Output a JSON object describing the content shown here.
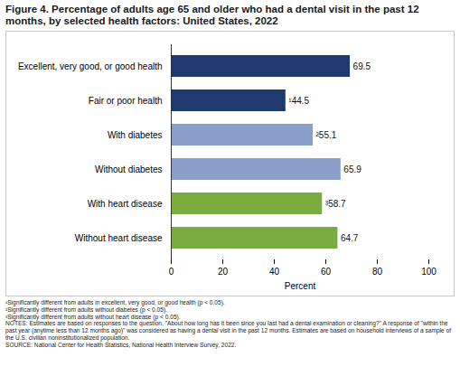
{
  "chart_data": {
    "type": "bar",
    "orientation": "horizontal",
    "title": "Figure 4. Percentage of adults age 65 and older who had a dental visit in the past 12 months, by selected health factors: United States, 2022",
    "categories": [
      "Excellent, very good, or good health",
      "Fair or poor health",
      "With diabetes",
      "Without diabetes",
      "With heart disease",
      "Without heart disease"
    ],
    "values": [
      69.5,
      44.5,
      55.1,
      65.9,
      58.7,
      64.7
    ],
    "value_labels": [
      "69.5",
      "¹44.5",
      "²55.1",
      "65.9",
      "³58.7",
      "64.7"
    ],
    "colors": [
      "#1f3a6e",
      "#1f3a6e",
      "#8b9fcb",
      "#8b9fcb",
      "#7aab3e",
      "#7aab3e"
    ],
    "data_labels": true,
    "x_label": "Percent",
    "xlim": [
      0,
      100
    ],
    "xticks": [
      0,
      20,
      40,
      60,
      80,
      100
    ],
    "grid": false,
    "footnotes": [
      "¹Significantly different from adults in excellent, very good, or good health (p < 0.05).",
      "²Significantly different from adults without diabetes (p < 0.05).",
      "³Significantly different from adults without heart disease (p < 0.05).",
      "NOTES: Estimates are based on responses to the question, \"About how long has it been since you last had a dental examination or cleaning?\" A response of \"within the past year (anytime less than 12 months ago)\" was considered as having a dental visit in the past 12 months. Estimates are based on household interviews of a sample of the U.S. civilian noninstitutionalized population.",
      "SOURCE: National Center for Health Statistics, National Health Interview Survey, 2022."
    ]
  }
}
